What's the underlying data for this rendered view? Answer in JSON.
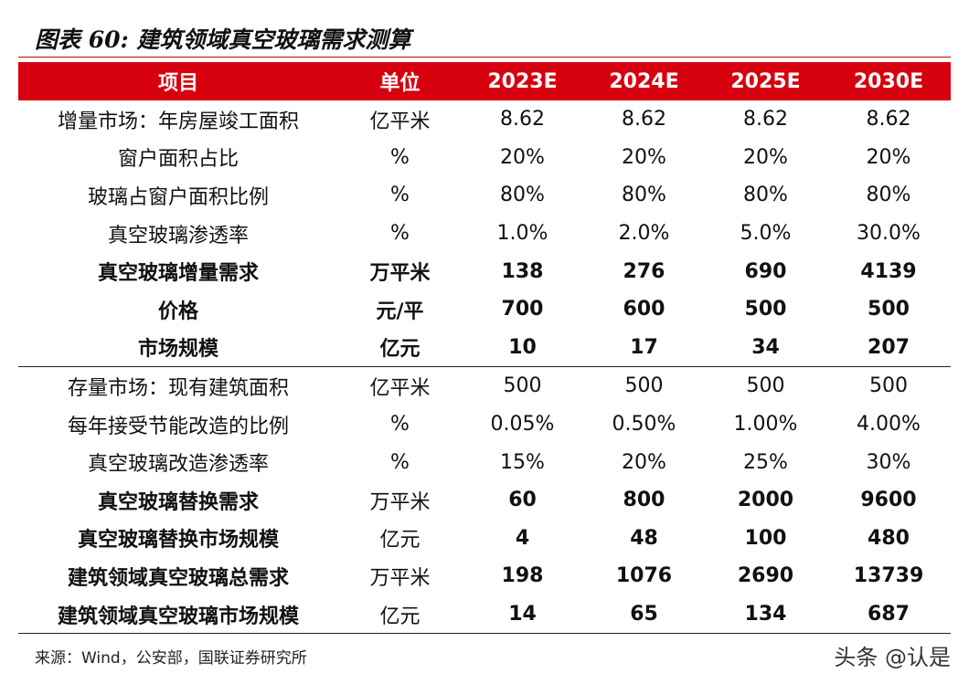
{
  "header": {
    "title": "图表 60: 建筑领域真空玻璃需求测算"
  },
  "table": {
    "columns": [
      "项目",
      "单位",
      "2023E",
      "2024E",
      "2025E",
      "2030E"
    ],
    "rows": [
      [
        "增量市场：年房屋竣工面积",
        "亿平米",
        "8.62",
        "8.62",
        "8.62",
        "8.62"
      ],
      [
        "窗户面积占比",
        "%",
        "20%",
        "20%",
        "20%",
        "20%"
      ],
      [
        "玻璃占窗户面积比例",
        "%",
        "80%",
        "80%",
        "80%",
        "80%"
      ],
      [
        "真空玻璃渗透率",
        "%",
        "1.0%",
        "2.0%",
        "5.0%",
        "30.0%"
      ],
      [
        "真空玻璃增量需求",
        "万平米",
        "138",
        "276",
        "690",
        "4139"
      ],
      [
        "价格",
        "元/平",
        "700",
        "600",
        "500",
        "500"
      ],
      [
        "市场规模",
        "亿元",
        "10",
        "17",
        "34",
        "207"
      ],
      [
        "存量市场：现有建筑面积",
        "亿平米",
        "500",
        "500",
        "500",
        "500"
      ],
      [
        "每年接受节能改造的比例",
        "%",
        "0.05%",
        "0.50%",
        "1.00%",
        "4.00%"
      ],
      [
        "真空玻璃改造渗透率",
        "%",
        "15%",
        "20%",
        "25%",
        "30%"
      ],
      [
        "真空玻璃替换需求",
        "万平米",
        "60",
        "800",
        "2000",
        "9600"
      ],
      [
        "真空玻璃替换市场规模",
        "亿元",
        "4",
        "48",
        "100",
        "480"
      ],
      [
        "建筑领域真空玻璃总需求",
        "万平米",
        "198",
        "1076",
        "2690",
        "13739"
      ],
      [
        "建筑领域真空玻璃市场规模",
        "亿元",
        "14",
        "65",
        "134",
        "687"
      ]
    ]
  },
  "footer": {
    "source": "来源：Wind，公安部，国联证券研究所",
    "watermark": "头条 @认是"
  }
}
